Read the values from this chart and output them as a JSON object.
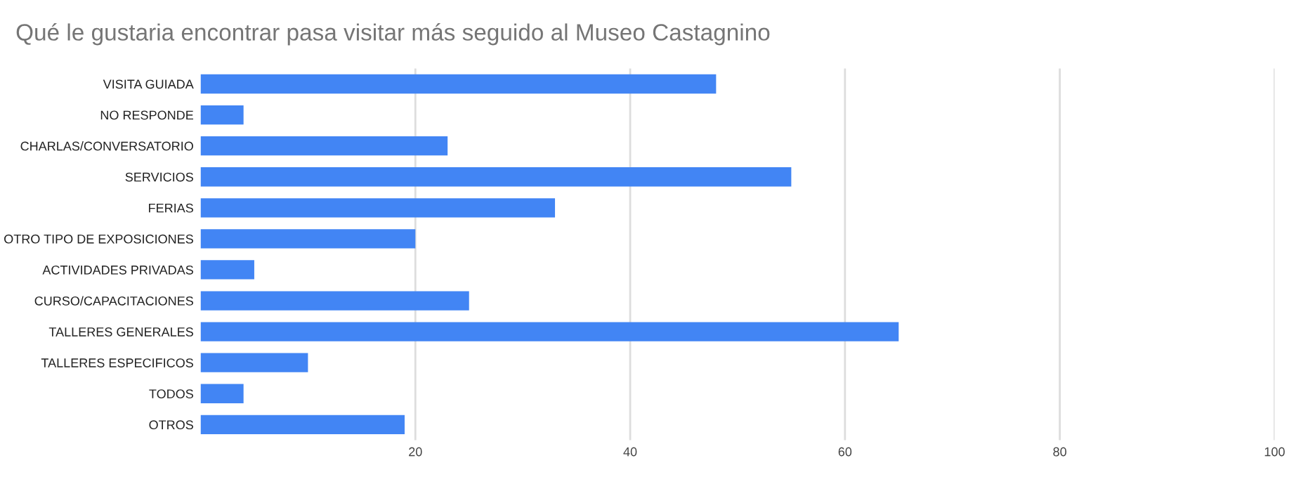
{
  "chart_data": {
    "type": "bar",
    "orientation": "horizontal",
    "title": "Qué le gustaria encontrar pasa visitar más seguido al Museo Castagnino",
    "categories": [
      "VISITA GUIADA",
      "NO RESPONDE",
      "CHARLAS/CONVERSATORIO",
      "SERVICIOS",
      "FERIAS",
      "OTRO TIPO DE EXPOSICIONES",
      "ACTIVIDADES PRIVADAS",
      "CURSO/CAPACITACIONES",
      "TALLERES GENERALES",
      "TALLERES ESPECIFICOS",
      "TODOS",
      "OTROS"
    ],
    "values": [
      48,
      4,
      23,
      55,
      33,
      20,
      5,
      25,
      65,
      10,
      4,
      19
    ],
    "color": "#4285f4",
    "xlim": [
      0,
      100
    ],
    "xticks": [
      20,
      40,
      60,
      80,
      100
    ],
    "grid": "x",
    "legend": false
  }
}
